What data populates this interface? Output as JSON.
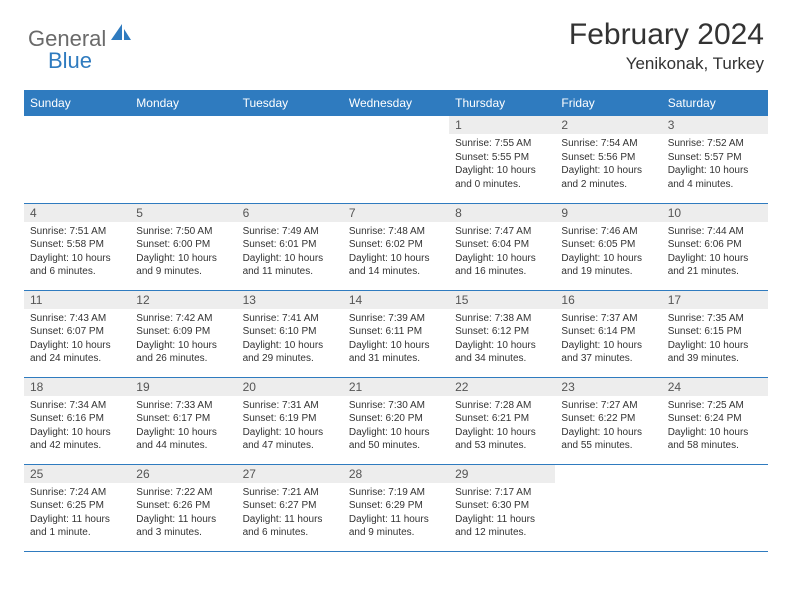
{
  "logo": {
    "general": "General",
    "blue": "Blue"
  },
  "title": "February 2024",
  "location": "Yenikonak, Turkey",
  "colors": {
    "header_bg": "#2f7bbf",
    "header_fg": "#ffffff",
    "daynum_bg": "#ededed",
    "border": "#2f7bbf",
    "text": "#333333",
    "logo_gray": "#6a6a6a",
    "logo_blue": "#2f7bbf"
  },
  "day_headers": [
    "Sunday",
    "Monday",
    "Tuesday",
    "Wednesday",
    "Thursday",
    "Friday",
    "Saturday"
  ],
  "weeks": [
    [
      null,
      null,
      null,
      null,
      {
        "n": "1",
        "sr": "Sunrise: 7:55 AM",
        "ss": "Sunset: 5:55 PM",
        "dl1": "Daylight: 10 hours",
        "dl2": "and 0 minutes."
      },
      {
        "n": "2",
        "sr": "Sunrise: 7:54 AM",
        "ss": "Sunset: 5:56 PM",
        "dl1": "Daylight: 10 hours",
        "dl2": "and 2 minutes."
      },
      {
        "n": "3",
        "sr": "Sunrise: 7:52 AM",
        "ss": "Sunset: 5:57 PM",
        "dl1": "Daylight: 10 hours",
        "dl2": "and 4 minutes."
      }
    ],
    [
      {
        "n": "4",
        "sr": "Sunrise: 7:51 AM",
        "ss": "Sunset: 5:58 PM",
        "dl1": "Daylight: 10 hours",
        "dl2": "and 6 minutes."
      },
      {
        "n": "5",
        "sr": "Sunrise: 7:50 AM",
        "ss": "Sunset: 6:00 PM",
        "dl1": "Daylight: 10 hours",
        "dl2": "and 9 minutes."
      },
      {
        "n": "6",
        "sr": "Sunrise: 7:49 AM",
        "ss": "Sunset: 6:01 PM",
        "dl1": "Daylight: 10 hours",
        "dl2": "and 11 minutes."
      },
      {
        "n": "7",
        "sr": "Sunrise: 7:48 AM",
        "ss": "Sunset: 6:02 PM",
        "dl1": "Daylight: 10 hours",
        "dl2": "and 14 minutes."
      },
      {
        "n": "8",
        "sr": "Sunrise: 7:47 AM",
        "ss": "Sunset: 6:04 PM",
        "dl1": "Daylight: 10 hours",
        "dl2": "and 16 minutes."
      },
      {
        "n": "9",
        "sr": "Sunrise: 7:46 AM",
        "ss": "Sunset: 6:05 PM",
        "dl1": "Daylight: 10 hours",
        "dl2": "and 19 minutes."
      },
      {
        "n": "10",
        "sr": "Sunrise: 7:44 AM",
        "ss": "Sunset: 6:06 PM",
        "dl1": "Daylight: 10 hours",
        "dl2": "and 21 minutes."
      }
    ],
    [
      {
        "n": "11",
        "sr": "Sunrise: 7:43 AM",
        "ss": "Sunset: 6:07 PM",
        "dl1": "Daylight: 10 hours",
        "dl2": "and 24 minutes."
      },
      {
        "n": "12",
        "sr": "Sunrise: 7:42 AM",
        "ss": "Sunset: 6:09 PM",
        "dl1": "Daylight: 10 hours",
        "dl2": "and 26 minutes."
      },
      {
        "n": "13",
        "sr": "Sunrise: 7:41 AM",
        "ss": "Sunset: 6:10 PM",
        "dl1": "Daylight: 10 hours",
        "dl2": "and 29 minutes."
      },
      {
        "n": "14",
        "sr": "Sunrise: 7:39 AM",
        "ss": "Sunset: 6:11 PM",
        "dl1": "Daylight: 10 hours",
        "dl2": "and 31 minutes."
      },
      {
        "n": "15",
        "sr": "Sunrise: 7:38 AM",
        "ss": "Sunset: 6:12 PM",
        "dl1": "Daylight: 10 hours",
        "dl2": "and 34 minutes."
      },
      {
        "n": "16",
        "sr": "Sunrise: 7:37 AM",
        "ss": "Sunset: 6:14 PM",
        "dl1": "Daylight: 10 hours",
        "dl2": "and 37 minutes."
      },
      {
        "n": "17",
        "sr": "Sunrise: 7:35 AM",
        "ss": "Sunset: 6:15 PM",
        "dl1": "Daylight: 10 hours",
        "dl2": "and 39 minutes."
      }
    ],
    [
      {
        "n": "18",
        "sr": "Sunrise: 7:34 AM",
        "ss": "Sunset: 6:16 PM",
        "dl1": "Daylight: 10 hours",
        "dl2": "and 42 minutes."
      },
      {
        "n": "19",
        "sr": "Sunrise: 7:33 AM",
        "ss": "Sunset: 6:17 PM",
        "dl1": "Daylight: 10 hours",
        "dl2": "and 44 minutes."
      },
      {
        "n": "20",
        "sr": "Sunrise: 7:31 AM",
        "ss": "Sunset: 6:19 PM",
        "dl1": "Daylight: 10 hours",
        "dl2": "and 47 minutes."
      },
      {
        "n": "21",
        "sr": "Sunrise: 7:30 AM",
        "ss": "Sunset: 6:20 PM",
        "dl1": "Daylight: 10 hours",
        "dl2": "and 50 minutes."
      },
      {
        "n": "22",
        "sr": "Sunrise: 7:28 AM",
        "ss": "Sunset: 6:21 PM",
        "dl1": "Daylight: 10 hours",
        "dl2": "and 53 minutes."
      },
      {
        "n": "23",
        "sr": "Sunrise: 7:27 AM",
        "ss": "Sunset: 6:22 PM",
        "dl1": "Daylight: 10 hours",
        "dl2": "and 55 minutes."
      },
      {
        "n": "24",
        "sr": "Sunrise: 7:25 AM",
        "ss": "Sunset: 6:24 PM",
        "dl1": "Daylight: 10 hours",
        "dl2": "and 58 minutes."
      }
    ],
    [
      {
        "n": "25",
        "sr": "Sunrise: 7:24 AM",
        "ss": "Sunset: 6:25 PM",
        "dl1": "Daylight: 11 hours",
        "dl2": "and 1 minute."
      },
      {
        "n": "26",
        "sr": "Sunrise: 7:22 AM",
        "ss": "Sunset: 6:26 PM",
        "dl1": "Daylight: 11 hours",
        "dl2": "and 3 minutes."
      },
      {
        "n": "27",
        "sr": "Sunrise: 7:21 AM",
        "ss": "Sunset: 6:27 PM",
        "dl1": "Daylight: 11 hours",
        "dl2": "and 6 minutes."
      },
      {
        "n": "28",
        "sr": "Sunrise: 7:19 AM",
        "ss": "Sunset: 6:29 PM",
        "dl1": "Daylight: 11 hours",
        "dl2": "and 9 minutes."
      },
      {
        "n": "29",
        "sr": "Sunrise: 7:17 AM",
        "ss": "Sunset: 6:30 PM",
        "dl1": "Daylight: 11 hours",
        "dl2": "and 12 minutes."
      },
      null,
      null
    ]
  ]
}
